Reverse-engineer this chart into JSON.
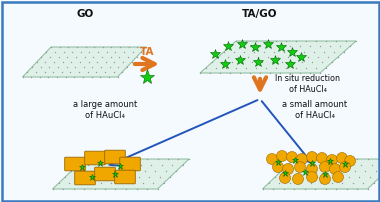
{
  "bg_color": "#f5faff",
  "border_color": "#3a7abf",
  "title_go": "GO",
  "title_tago": "TA/GO",
  "arrow1_label": "TA",
  "arrow2_label": "In situ reduction\nof HAuCl₄",
  "label_large": "a large amount\nof HAuCl₄",
  "label_small": "a small amount\nof HAuCl₄",
  "go_color": "#dff0e8",
  "go_edge_color": "#88bb99",
  "go_dot_color": "#999999",
  "star_color": "#11cc11",
  "star_edge_color": "#006600",
  "arrow_color": "#e07520",
  "branch_arrow_color": "#2255bb",
  "au_large_color": "#f0a800",
  "au_small_color": "#f0a800",
  "text_color": "#111111",
  "font_size_title": 7.5,
  "font_size_label": 6.0,
  "font_size_arrow_label": 7.5,
  "font_size_reduction": 5.8
}
